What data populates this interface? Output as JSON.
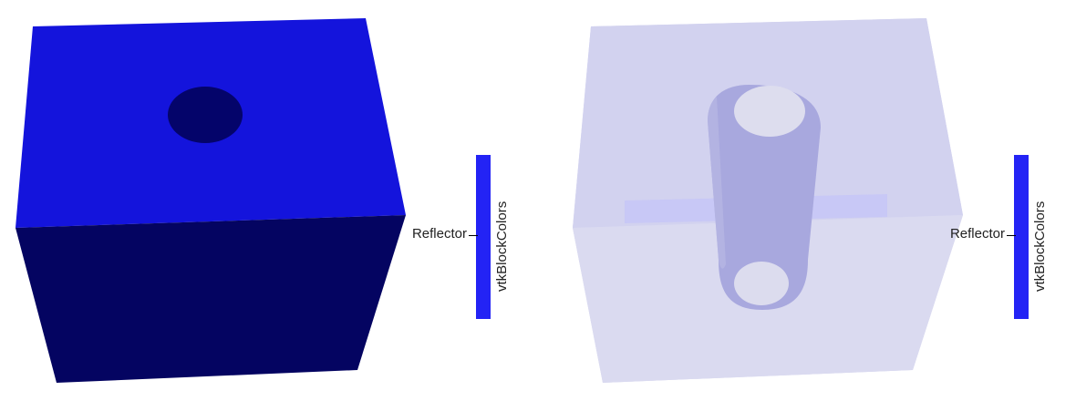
{
  "views": [
    {
      "id": "solid",
      "legend": {
        "title": "vtkBlockColors",
        "label": "Reflector",
        "color": "#2323f5"
      },
      "colors": {
        "top_face": "#1414dc",
        "front_face": "#040461",
        "hole": "#04046a"
      }
    },
    {
      "id": "translucent",
      "legend": {
        "title": "vtkBlockColors",
        "label": "Reflector",
        "color": "#2323f5"
      },
      "colors": {
        "box_fill": "#d2d2ef",
        "cylinder": "#a6a6dd",
        "cylinder_cap": "#ddddee"
      }
    }
  ]
}
